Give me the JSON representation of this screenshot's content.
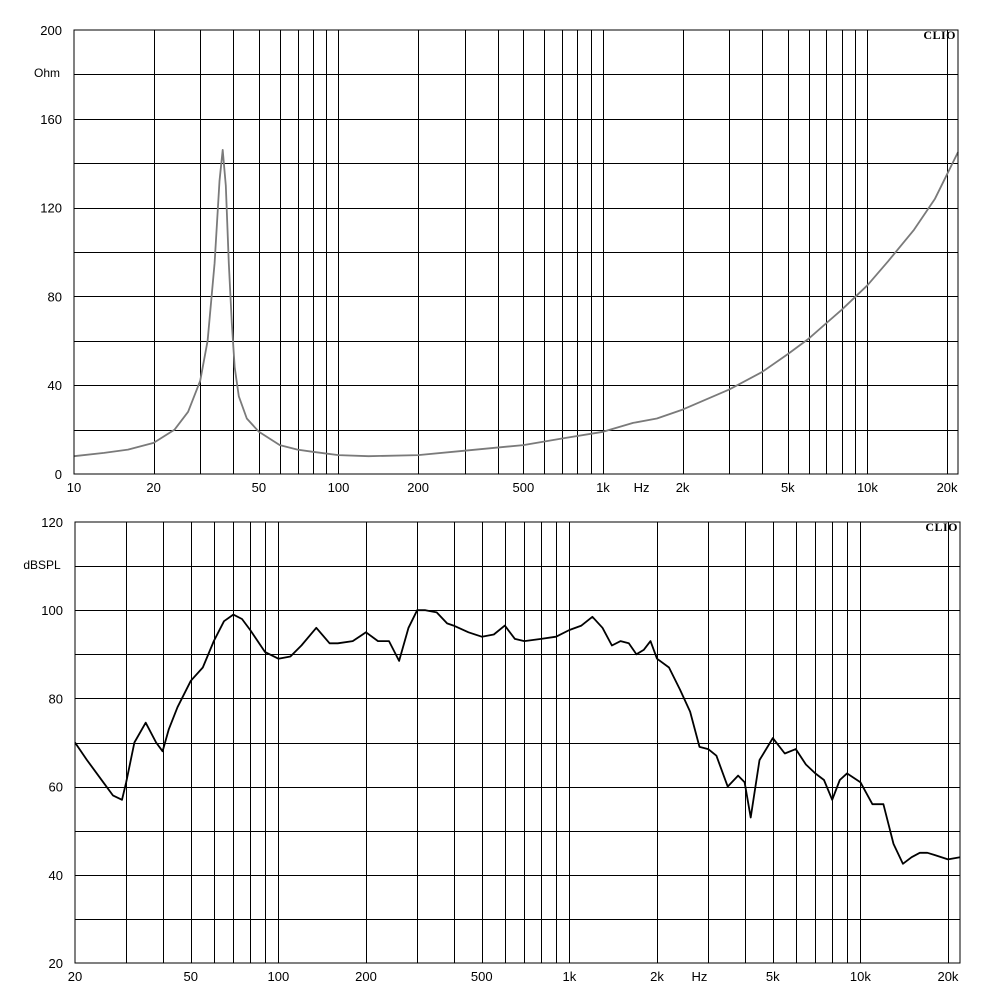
{
  "chart_data": [
    {
      "type": "line",
      "x_scale": "log",
      "xlim": [
        10,
        22000
      ],
      "ylim": [
        0,
        200
      ],
      "ylabel": "Ohm",
      "xlabel": "Hz",
      "brand": "CLIO",
      "grid": true,
      "x_ticks": [
        {
          "v": 10,
          "label": "10"
        },
        {
          "v": 20,
          "label": "20"
        },
        {
          "v": 50,
          "label": "50"
        },
        {
          "v": 100,
          "label": "100"
        },
        {
          "v": 200,
          "label": "200"
        },
        {
          "v": 500,
          "label": "500"
        },
        {
          "v": 1000,
          "label": "1k"
        },
        {
          "v": 2000,
          "label": "2k"
        },
        {
          "v": 5000,
          "label": "5k"
        },
        {
          "v": 10000,
          "label": "10k"
        },
        {
          "v": 20000,
          "label": "20k"
        }
      ],
      "hz_label_at": 1400,
      "y_ticks": [
        0,
        40,
        80,
        120,
        160,
        200
      ],
      "y_grid_step": 20,
      "series": [
        {
          "color": "#7a7a7a",
          "x": [
            10,
            13,
            16,
            20,
            24,
            27,
            30,
            32,
            34,
            35.5,
            36.5,
            37.5,
            38.5,
            39.5,
            40.5,
            42,
            45,
            50,
            60,
            70,
            80,
            100,
            130,
            200,
            300,
            500,
            700,
            1000,
            1300,
            1600,
            2000,
            3000,
            4000,
            5000,
            6000,
            7000,
            8000,
            10000,
            12000,
            15000,
            18000,
            22000
          ],
          "y": [
            8,
            9.5,
            11,
            14,
            20,
            28,
            42,
            60,
            95,
            132,
            146,
            130,
            95,
            68,
            48,
            35,
            25,
            19,
            13,
            11,
            10,
            8.5,
            8,
            8.5,
            10.5,
            13,
            16,
            19,
            23,
            25,
            29,
            38,
            46,
            54,
            61,
            68,
            74,
            85,
            96,
            110,
            124,
            145
          ]
        }
      ]
    },
    {
      "type": "line",
      "x_scale": "log",
      "xlim": [
        20,
        22000
      ],
      "ylim": [
        20,
        120
      ],
      "ylabel": "dBSPL",
      "xlabel": "Hz",
      "brand": "CLIO",
      "grid": true,
      "x_ticks": [
        {
          "v": 20,
          "label": "20"
        },
        {
          "v": 50,
          "label": "50"
        },
        {
          "v": 100,
          "label": "100"
        },
        {
          "v": 200,
          "label": "200"
        },
        {
          "v": 500,
          "label": "500"
        },
        {
          "v": 1000,
          "label": "1k"
        },
        {
          "v": 2000,
          "label": "2k"
        },
        {
          "v": 5000,
          "label": "5k"
        },
        {
          "v": 10000,
          "label": "10k"
        },
        {
          "v": 20000,
          "label": "20k"
        }
      ],
      "hz_label_at": 2800,
      "y_ticks": [
        20,
        40,
        60,
        80,
        100,
        120
      ],
      "y_grid_step": 10,
      "series": [
        {
          "color": "#000000",
          "x": [
            20,
            22,
            25,
            27,
            29,
            30,
            32,
            35,
            38,
            40,
            42,
            45,
            50,
            55,
            60,
            65,
            70,
            75,
            80,
            90,
            100,
            110,
            120,
            135,
            150,
            160,
            180,
            200,
            220,
            240,
            260,
            280,
            300,
            320,
            350,
            380,
            400,
            450,
            500,
            550,
            600,
            650,
            700,
            800,
            900,
            1000,
            1100,
            1200,
            1300,
            1400,
            1500,
            1600,
            1700,
            1800,
            1900,
            2000,
            2200,
            2400,
            2600,
            2800,
            3000,
            3200,
            3500,
            3800,
            4000,
            4200,
            4500,
            5000,
            5500,
            6000,
            6500,
            7000,
            7500,
            8000,
            8500,
            9000,
            10000,
            11000,
            12000,
            13000,
            14000,
            15000,
            16000,
            17000,
            18000,
            20000,
            22000
          ],
          "y": [
            70,
            66,
            61,
            58,
            57,
            61,
            70,
            74.5,
            70,
            68,
            73,
            78,
            84,
            87,
            93,
            97.5,
            99,
            98,
            95.5,
            90.5,
            89,
            89.5,
            92,
            96,
            92.5,
            92.5,
            93,
            95,
            93,
            93,
            88.5,
            96,
            100,
            100,
            99.5,
            97,
            96.5,
            95,
            94,
            94.5,
            96.5,
            93.5,
            93,
            93.5,
            94,
            95.5,
            96.5,
            98.5,
            96,
            92,
            93,
            92.5,
            90,
            91,
            93,
            89,
            87,
            82,
            77,
            69,
            68.5,
            67,
            60,
            62.5,
            61,
            53,
            66,
            71,
            67.5,
            68.5,
            65,
            63,
            61.5,
            57,
            61.5,
            63,
            61,
            56,
            56,
            47,
            42.5,
            44,
            45,
            45,
            44.5,
            43.5,
            44
          ]
        }
      ]
    }
  ]
}
